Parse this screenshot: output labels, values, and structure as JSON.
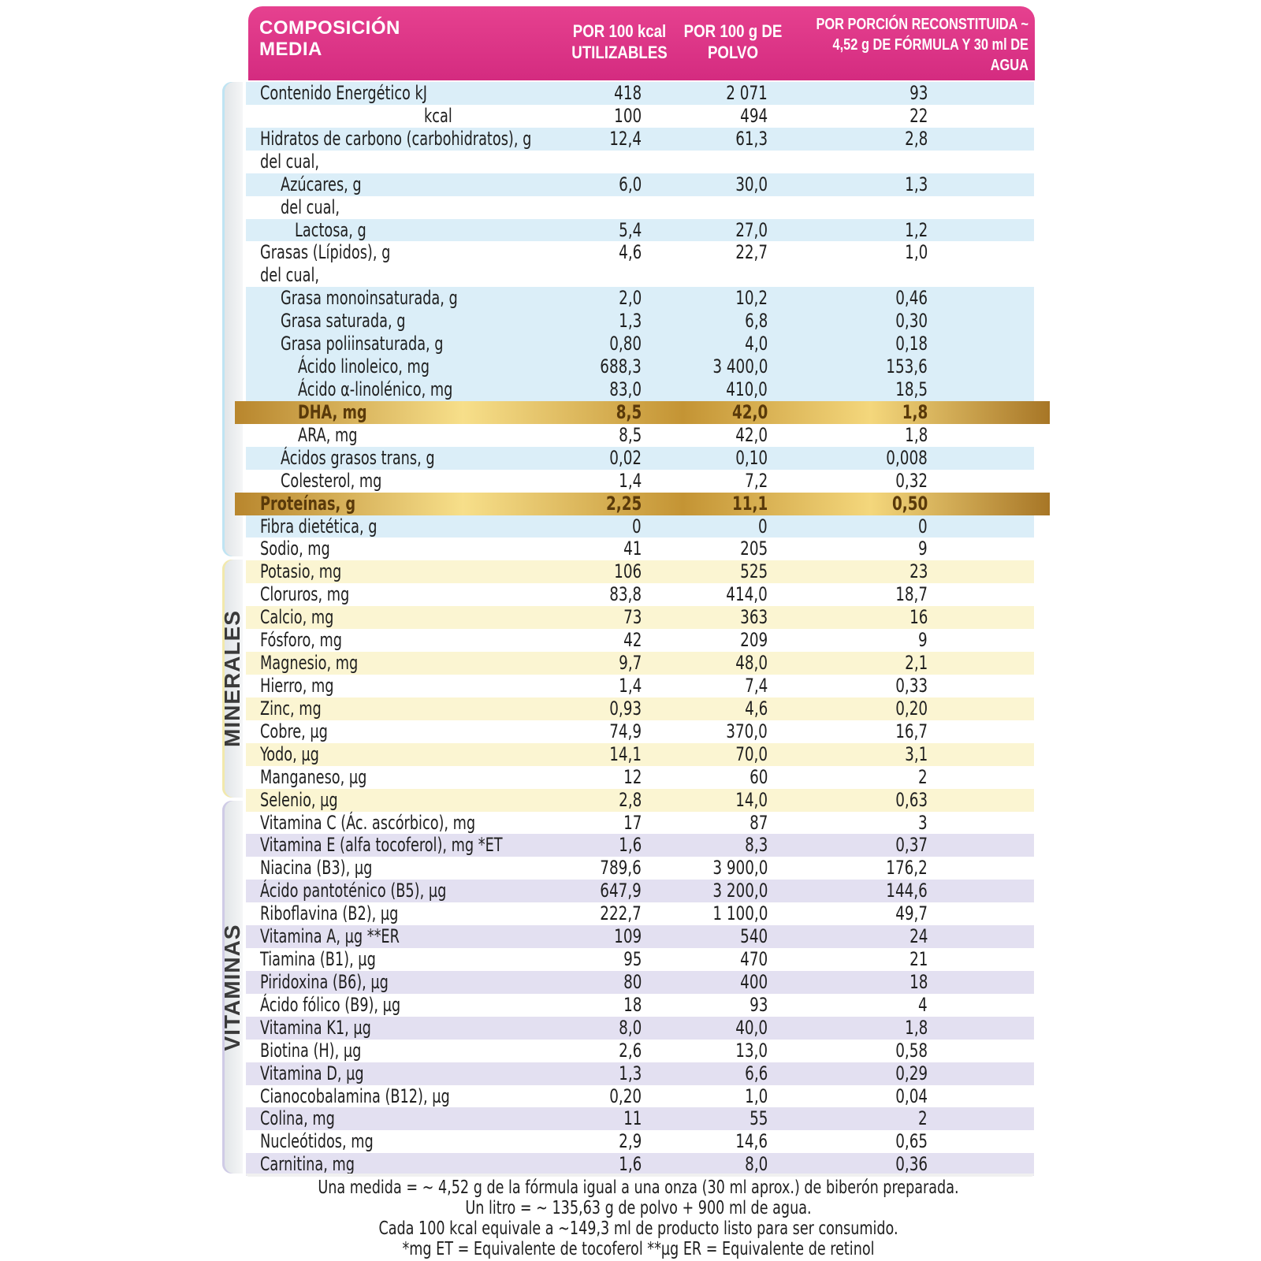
{
  "header": {
    "composition": "COMPOSICIÓN MEDIA",
    "col1": "POR 100 kcal UTILIZABLES",
    "col2": "POR 100 g DE POLVO",
    "col3": "POR PORCIÓN RECONSTITUIDA ~ 4,52 g DE FÓRMULA Y 30 ml DE AGUA"
  },
  "sections": {
    "minerals": "MINERALES",
    "vitamins": "VITAMINAS"
  },
  "rows": [
    {
      "name": "Contenido Energético kJ",
      "v1": "418",
      "v2": "2 071",
      "v3": "93",
      "style": "s-nut",
      "ind": 0
    },
    {
      "name": "kcal",
      "v1": "100",
      "v2": "494",
      "v3": "22",
      "style": "plain",
      "ind": 4
    },
    {
      "name": "Hidratos de carbono (carbohidratos), g",
      "v1": "12,4",
      "v2": "61,3",
      "v3": "2,8",
      "style": "s-nut",
      "ind": 0
    },
    {
      "name": "del cual,",
      "v1": "",
      "v2": "",
      "v3": "",
      "style": "plain",
      "ind": 0
    },
    {
      "name": "Azúcares, g",
      "v1": "6,0",
      "v2": "30,0",
      "v3": "1,3",
      "style": "s-nut",
      "ind": 1
    },
    {
      "name": "del cual,",
      "v1": "",
      "v2": "",
      "v3": "",
      "style": "plain",
      "ind": 1
    },
    {
      "name": "Lactosa, g",
      "v1": "5,4",
      "v2": "27,0",
      "v3": "1,2",
      "style": "s-nut",
      "ind": 2
    },
    {
      "name": "Grasas (Lípidos), g",
      "v1": "4,6",
      "v2": "22,7",
      "v3": "1,0",
      "style": "plain",
      "ind": 0
    },
    {
      "name": "del cual,",
      "v1": "",
      "v2": "",
      "v3": "",
      "style": "plain",
      "ind": 0
    },
    {
      "name": "Grasa monoinsaturada, g",
      "v1": "2,0",
      "v2": "10,2",
      "v3": "0,46",
      "style": "s-nut",
      "ind": 1
    },
    {
      "name": "Grasa saturada, g",
      "v1": "1,3",
      "v2": "6,8",
      "v3": "0,30",
      "style": "s-nut",
      "ind": 1
    },
    {
      "name": "Grasa poliinsaturada, g",
      "v1": "0,80",
      "v2": "4,0",
      "v3": "0,18",
      "style": "s-nut",
      "ind": 1
    },
    {
      "name": "Ácido linoleico, mg",
      "v1": "688,3",
      "v2": "3 400,0",
      "v3": "153,6",
      "style": "s-nut",
      "ind": 3
    },
    {
      "name": "Ácido α-linolénico, mg",
      "v1": "83,0",
      "v2": "410,0",
      "v3": "18,5",
      "style": "s-nut",
      "ind": 3
    },
    {
      "name": "DHA, mg",
      "v1": "8,5",
      "v2": "42,0",
      "v3": "1,8",
      "style": "gold",
      "ind": 3
    },
    {
      "name": "ARA, mg",
      "v1": "8,5",
      "v2": "42,0",
      "v3": "1,8",
      "style": "plain",
      "ind": 3
    },
    {
      "name": "Ácidos grasos trans, g",
      "v1": "0,02",
      "v2": "0,10",
      "v3": "0,008",
      "style": "s-nut",
      "ind": 1
    },
    {
      "name": "Colesterol, mg",
      "v1": "1,4",
      "v2": "7,2",
      "v3": "0,32",
      "style": "plain",
      "ind": 1
    },
    {
      "name": "Proteínas, g",
      "v1": "2,25",
      "v2": "11,1",
      "v3": "0,50",
      "style": "gold",
      "ind": 0
    },
    {
      "name": "Fibra dietética, g",
      "v1": "0",
      "v2": "0",
      "v3": "0",
      "style": "s-nut",
      "ind": 0
    },
    {
      "name": "Sodio, mg",
      "v1": "41",
      "v2": "205",
      "v3": "9",
      "style": "plain",
      "ind": 0
    },
    {
      "name": "Potasio, mg",
      "v1": "106",
      "v2": "525",
      "v3": "23",
      "style": "s-min",
      "ind": 0
    },
    {
      "name": "Cloruros, mg",
      "v1": "83,8",
      "v2": "414,0",
      "v3": "18,7",
      "style": "plain",
      "ind": 0
    },
    {
      "name": "Calcio, mg",
      "v1": "73",
      "v2": "363",
      "v3": "16",
      "style": "s-min",
      "ind": 0
    },
    {
      "name": "Fósforo, mg",
      "v1": "42",
      "v2": "209",
      "v3": "9",
      "style": "plain",
      "ind": 0
    },
    {
      "name": "Magnesio, mg",
      "v1": "9,7",
      "v2": "48,0",
      "v3": "2,1",
      "style": "s-min",
      "ind": 0
    },
    {
      "name": "Hierro, mg",
      "v1": "1,4",
      "v2": "7,4",
      "v3": "0,33",
      "style": "plain",
      "ind": 0
    },
    {
      "name": "Zinc, mg",
      "v1": "0,93",
      "v2": "4,6",
      "v3": "0,20",
      "style": "s-min",
      "ind": 0
    },
    {
      "name": "Cobre, µg",
      "v1": "74,9",
      "v2": "370,0",
      "v3": "16,7",
      "style": "plain",
      "ind": 0
    },
    {
      "name": "Yodo, µg",
      "v1": "14,1",
      "v2": "70,0",
      "v3": "3,1",
      "style": "s-min",
      "ind": 0
    },
    {
      "name": "Manganeso, µg",
      "v1": "12",
      "v2": "60",
      "v3": "2",
      "style": "plain",
      "ind": 0
    },
    {
      "name": "Selenio, µg",
      "v1": "2,8",
      "v2": "14,0",
      "v3": "0,63",
      "style": "s-min",
      "ind": 0
    },
    {
      "name": "Vitamina C (Ác. ascórbico), mg",
      "v1": "17",
      "v2": "87",
      "v3": "3",
      "style": "plain",
      "ind": 0
    },
    {
      "name": "Vitamina E (alfa tocoferol), mg *ET",
      "v1": "1,6",
      "v2": "8,3",
      "v3": "0,37",
      "style": "s-vit",
      "ind": 0
    },
    {
      "name": "Niacina (B3), µg",
      "v1": "789,6",
      "v2": "3 900,0",
      "v3": "176,2",
      "style": "plain",
      "ind": 0
    },
    {
      "name": "Ácido pantoténico (B5), µg",
      "v1": "647,9",
      "v2": "3 200,0",
      "v3": "144,6",
      "style": "s-vit",
      "ind": 0
    },
    {
      "name": "Riboflavina (B2), µg",
      "v1": "222,7",
      "v2": "1 100,0",
      "v3": "49,7",
      "style": "plain",
      "ind": 0
    },
    {
      "name": "Vitamina A, µg **ER",
      "v1": "109",
      "v2": "540",
      "v3": "24",
      "style": "s-vit",
      "ind": 0
    },
    {
      "name": "Tiamina (B1), µg",
      "v1": "95",
      "v2": "470",
      "v3": "21",
      "style": "plain",
      "ind": 0
    },
    {
      "name": "Piridoxina (B6), µg",
      "v1": "80",
      "v2": "400",
      "v3": "18",
      "style": "s-vit",
      "ind": 0
    },
    {
      "name": "Ácido fólico (B9), µg",
      "v1": "18",
      "v2": "93",
      "v3": "4",
      "style": "plain",
      "ind": 0
    },
    {
      "name": "Vitamina K1, µg",
      "v1": "8,0",
      "v2": "40,0",
      "v3": "1,8",
      "style": "s-vit",
      "ind": 0
    },
    {
      "name": "Biotina (H), µg",
      "v1": "2,6",
      "v2": "13,0",
      "v3": "0,58",
      "style": "plain",
      "ind": 0
    },
    {
      "name": "Vitamina D, µg",
      "v1": "1,3",
      "v2": "6,6",
      "v3": "0,29",
      "style": "s-vit",
      "ind": 0
    },
    {
      "name": "Cianocobalamina (B12), µg",
      "v1": "0,20",
      "v2": "1,0",
      "v3": "0,04",
      "style": "plain",
      "ind": 0
    },
    {
      "name": "Colina, mg",
      "v1": "11",
      "v2": "55",
      "v3": "2",
      "style": "s-vit",
      "ind": 0
    },
    {
      "name": "Nucleótidos, mg",
      "v1": "2,9",
      "v2": "14,6",
      "v3": "0,65",
      "style": "plain",
      "ind": 0
    },
    {
      "name": "Carnitina, mg",
      "v1": "1,6",
      "v2": "8,0",
      "v3": "0,36",
      "style": "s-vit",
      "ind": 0
    }
  ],
  "footnotes": {
    "line1": "Una medida = ~ 4,52 g de la fórmula igual a una onza (30 ml aprox.) de biberón preparada.",
    "line2": "Un litro = ~ 135,63 g de polvo + 900 ml de agua.",
    "line3": "Cada 100 kcal equivale a ~149,3 ml de producto listo para ser consumido.",
    "line4": "*mg ET = Equivalente de tocoferol     **µg ER = Equivalente de retinol"
  }
}
